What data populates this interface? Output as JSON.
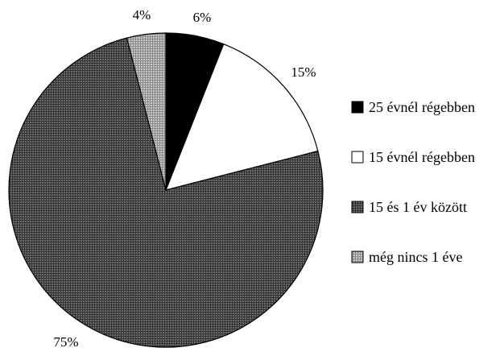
{
  "chart_data": {
    "type": "pie",
    "title": "",
    "start_angle_deg": 0,
    "direction": "clockwise",
    "legend_position": "right",
    "slices": [
      {
        "name": "25 évnél régebben",
        "value": 6,
        "label": "6%",
        "color": "#000000",
        "pattern": "solid"
      },
      {
        "name": "15 évnél régebben",
        "value": 15,
        "label": "15%",
        "color": "#ffffff",
        "pattern": "solid"
      },
      {
        "name": "15 és 1 év között",
        "value": 75,
        "label": "75%",
        "color": "#555555",
        "pattern": "dark-grid"
      },
      {
        "name": "még nincs 1 éve",
        "value": 4,
        "label": "4%",
        "color": "#b5b5b5",
        "pattern": "light-grid"
      }
    ]
  }
}
